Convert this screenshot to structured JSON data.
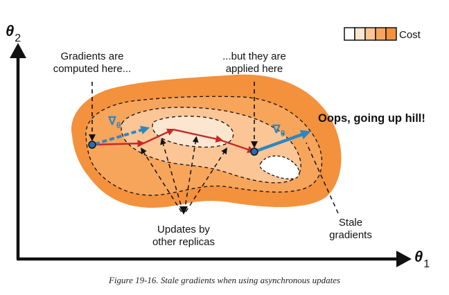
{
  "axes": {
    "y_label": "θ",
    "y_subscript": "2",
    "x_label": "θ",
    "x_subscript": "1"
  },
  "legend": {
    "label": "Cost",
    "swatch_colors": [
      "#ffffff",
      "#fde6cf",
      "#fbc596",
      "#f7a55b",
      "#f3913d"
    ]
  },
  "annotations": {
    "computed_line1": "Gradients are",
    "computed_line2": "computed here...",
    "applied_line1": "...but they are",
    "applied_line2": "applied here",
    "oops": "Oops, going up hill!",
    "replicas_line1": "Updates by",
    "replicas_line2": "other replicas",
    "stale_line1": "Stale",
    "stale_line2": "gradients",
    "nabla_symbol": "∇",
    "nabla_subscript": "θ"
  },
  "colors": {
    "outer_region": "#f3913d",
    "ring2": "#f7a55b",
    "ring3": "#fbc596",
    "ring4": "#fde6cf",
    "inner": "#ffffff",
    "gradient_arrow": "#2e86c1",
    "update_path": "#c62828",
    "point_fill": "#1f6fb2"
  },
  "caption": "Figure 19-16. Stale gradients when using asynchronous updates"
}
